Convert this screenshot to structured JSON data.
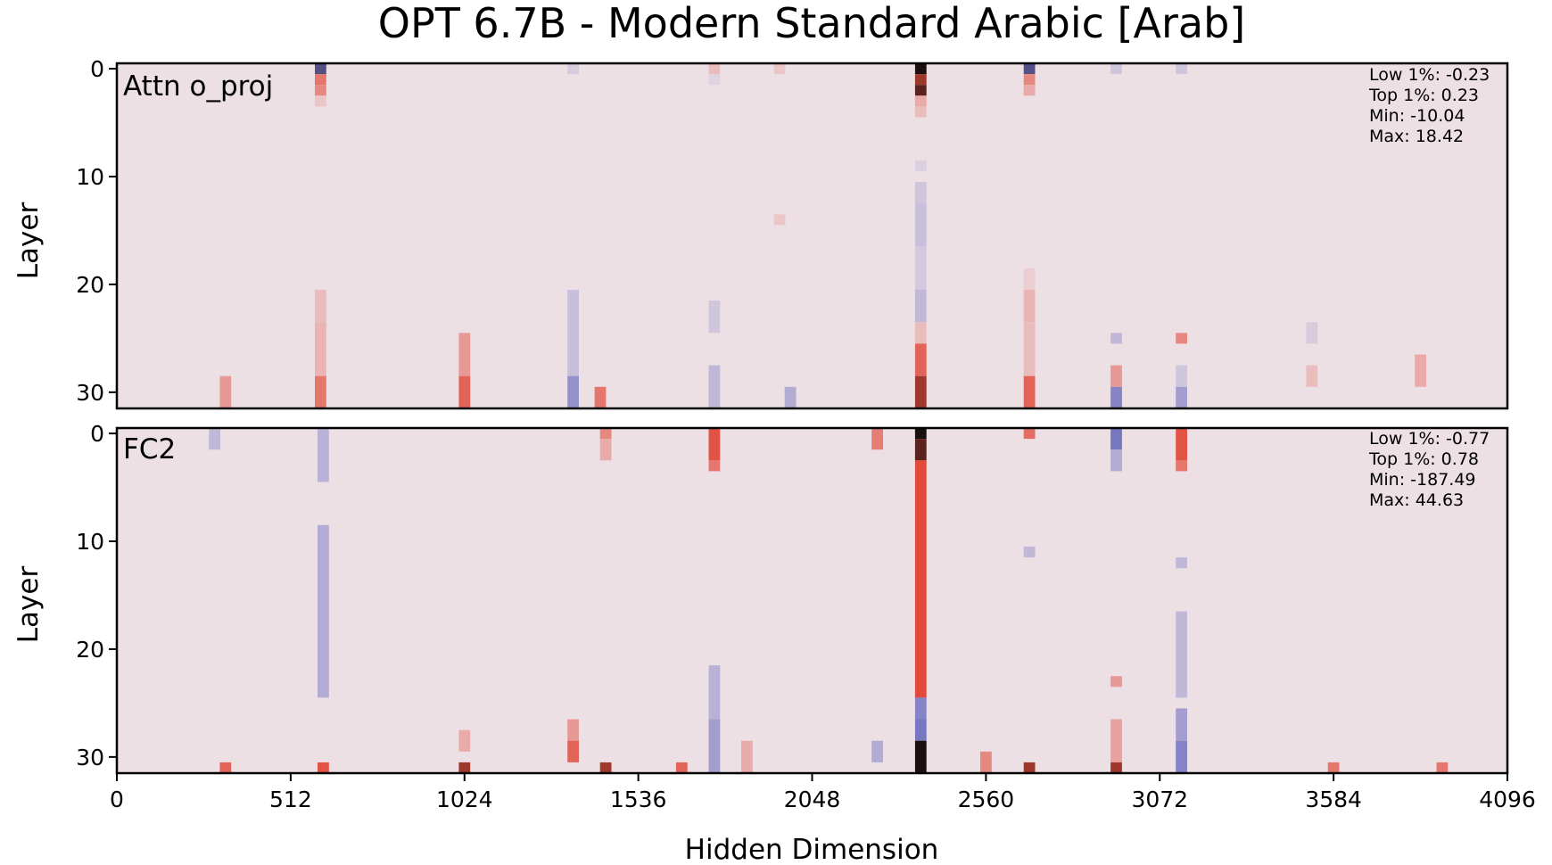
{
  "title": "OPT 6.7B - Modern Standard Arabic [Arab]",
  "xlabel": "Hidden Dimension",
  "colors": {
    "background": "#ede0e5",
    "negative": "#7070c0",
    "positive": "#e04a3a",
    "extreme": "#1a1010"
  },
  "chart_data": [
    {
      "type": "heatmap",
      "panel_label": "Attn o_proj",
      "ylabel": "Layer",
      "xlim": [
        0,
        4096
      ],
      "ylim": [
        32,
        0
      ],
      "xticks": [
        0,
        512,
        1024,
        1536,
        2048,
        2560,
        3072,
        3584,
        4096
      ],
      "yticks": [
        0,
        10,
        20,
        30
      ],
      "stats": [
        "Low 1%: -0.23",
        "Top 1%: 0.23",
        "Min: -10.04",
        "Max: 18.42"
      ],
      "columns": [
        {
          "x": 600,
          "cells": [
            [
              0,
              1,
              -0.9
            ],
            [
              1,
              2,
              0.6
            ],
            [
              2,
              3,
              0.5
            ],
            [
              3,
              4,
              0.15
            ],
            [
              21,
              24,
              0.2
            ],
            [
              24,
              29,
              0.25
            ],
            [
              29,
              32,
              0.6
            ]
          ]
        },
        {
          "x": 1344,
          "cells": [
            [
              0,
              1,
              -0.15
            ],
            [
              21,
              29,
              -0.25
            ],
            [
              29,
              32,
              -0.6
            ]
          ]
        },
        {
          "x": 1024,
          "cells": [
            [
              25,
              29,
              0.4
            ],
            [
              29,
              32,
              0.7
            ]
          ]
        },
        {
          "x": 1760,
          "cells": [
            [
              0,
              1,
              0.2
            ],
            [
              1,
              2,
              -0.1
            ],
            [
              22,
              25,
              -0.2
            ],
            [
              28,
              32,
              -0.3
            ]
          ]
        },
        {
          "x": 1952,
          "cells": [
            [
              0,
              1,
              0.15
            ],
            [
              14,
              15,
              0.15
            ]
          ]
        },
        {
          "x": 2368,
          "cells": [
            [
              0,
              1,
              1.0
            ],
            [
              1,
              2,
              0.9
            ],
            [
              2,
              3,
              0.95
            ],
            [
              3,
              4,
              0.3
            ],
            [
              4,
              5,
              0.2
            ],
            [
              9,
              10,
              -0.12
            ],
            [
              11,
              13,
              -0.2
            ],
            [
              13,
              17,
              -0.25
            ],
            [
              17,
              21,
              -0.18
            ],
            [
              21,
              24,
              -0.3
            ],
            [
              24,
              26,
              0.2
            ],
            [
              26,
              29,
              0.7
            ],
            [
              29,
              32,
              0.9
            ]
          ]
        },
        {
          "x": 2688,
          "cells": [
            [
              0,
              1,
              -0.9
            ],
            [
              1,
              2,
              0.5
            ],
            [
              2,
              3,
              0.3
            ],
            [
              19,
              21,
              0.1
            ],
            [
              21,
              24,
              0.25
            ],
            [
              24,
              29,
              0.2
            ],
            [
              29,
              32,
              0.7
            ]
          ]
        },
        {
          "x": 2944,
          "cells": [
            [
              0,
              1,
              -0.2
            ],
            [
              25,
              26,
              -0.3
            ],
            [
              28,
              30,
              0.4
            ],
            [
              30,
              32,
              -0.7
            ]
          ]
        },
        {
          "x": 3136,
          "cells": [
            [
              0,
              1,
              -0.2
            ],
            [
              25,
              26,
              0.5
            ],
            [
              28,
              30,
              -0.2
            ],
            [
              30,
              32,
              -0.5
            ]
          ]
        },
        {
          "x": 1424,
          "cells": [
            [
              30,
              32,
              0.6
            ]
          ]
        },
        {
          "x": 1984,
          "cells": [
            [
              30,
              32,
              -0.4
            ]
          ]
        },
        {
          "x": 320,
          "cells": [
            [
              29,
              32,
              0.4
            ]
          ]
        },
        {
          "x": 3520,
          "cells": [
            [
              24,
              26,
              -0.15
            ],
            [
              28,
              30,
              0.2
            ]
          ]
        },
        {
          "x": 3840,
          "cells": [
            [
              27,
              30,
              0.3
            ]
          ]
        }
      ]
    },
    {
      "type": "heatmap",
      "panel_label": "FC2",
      "ylabel": "Layer",
      "xlim": [
        0,
        4096
      ],
      "ylim": [
        32,
        0
      ],
      "xticks": [
        0,
        512,
        1024,
        1536,
        2048,
        2560,
        3072,
        3584,
        4096
      ],
      "yticks": [
        0,
        10,
        20,
        30
      ],
      "stats": [
        "Low 1%: -0.77",
        "Top 1%: 0.78",
        "Min: -187.49",
        "Max: 44.63"
      ],
      "columns": [
        {
          "x": 288,
          "cells": [
            [
              0,
              2,
              -0.3
            ]
          ]
        },
        {
          "x": 608,
          "cells": [
            [
              0,
              5,
              -0.35
            ],
            [
              9,
              25,
              -0.4
            ],
            [
              31,
              32,
              0.8
            ]
          ]
        },
        {
          "x": 1440,
          "cells": [
            [
              0,
              1,
              0.5
            ],
            [
              1,
              3,
              0.3
            ],
            [
              31,
              32,
              0.9
            ]
          ]
        },
        {
          "x": 1760,
          "cells": [
            [
              0,
              3,
              0.8
            ],
            [
              3,
              4,
              0.6
            ],
            [
              22,
              27,
              -0.35
            ],
            [
              27,
              32,
              -0.5
            ]
          ]
        },
        {
          "x": 2240,
          "cells": [
            [
              0,
              2,
              0.55
            ],
            [
              29,
              31,
              -0.4
            ]
          ]
        },
        {
          "x": 2368,
          "cells": [
            [
              0,
              1,
              1.0
            ],
            [
              1,
              3,
              0.95
            ],
            [
              3,
              25,
              0.85
            ],
            [
              25,
              27,
              -0.7
            ],
            [
              27,
              29,
              -0.8
            ],
            [
              29,
              32,
              1.0
            ]
          ]
        },
        {
          "x": 2688,
          "cells": [
            [
              0,
              1,
              0.65
            ],
            [
              11,
              12,
              -0.3
            ],
            [
              31,
              32,
              0.9
            ]
          ]
        },
        {
          "x": 2944,
          "cells": [
            [
              0,
              2,
              -0.8
            ],
            [
              2,
              4,
              -0.4
            ],
            [
              23,
              24,
              0.4
            ],
            [
              27,
              31,
              0.35
            ],
            [
              31,
              32,
              0.9
            ]
          ]
        },
        {
          "x": 3136,
          "cells": [
            [
              0,
              3,
              0.8
            ],
            [
              3,
              4,
              0.6
            ],
            [
              12,
              13,
              -0.3
            ],
            [
              17,
              25,
              -0.3
            ],
            [
              26,
              29,
              -0.5
            ],
            [
              29,
              32,
              -0.7
            ]
          ]
        },
        {
          "x": 1024,
          "cells": [
            [
              28,
              30,
              0.3
            ],
            [
              31,
              32,
              0.9
            ]
          ]
        },
        {
          "x": 1344,
          "cells": [
            [
              27,
              29,
              0.4
            ],
            [
              29,
              31,
              0.7
            ]
          ]
        },
        {
          "x": 1664,
          "cells": [
            [
              31,
              32,
              0.7
            ]
          ]
        },
        {
          "x": 1856,
          "cells": [
            [
              29,
              32,
              0.3
            ]
          ]
        },
        {
          "x": 2560,
          "cells": [
            [
              30,
              32,
              0.5
            ]
          ]
        },
        {
          "x": 320,
          "cells": [
            [
              31,
              32,
              0.7
            ]
          ]
        },
        {
          "x": 3584,
          "cells": [
            [
              31,
              32,
              0.6
            ]
          ]
        },
        {
          "x": 3904,
          "cells": [
            [
              31,
              32,
              0.6
            ]
          ]
        }
      ]
    }
  ]
}
